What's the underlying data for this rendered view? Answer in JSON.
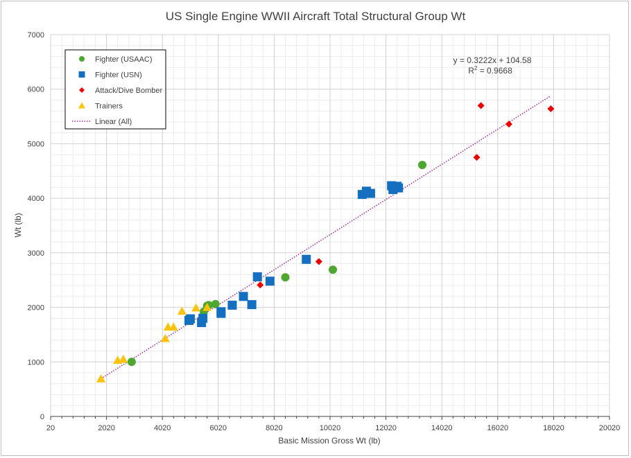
{
  "chart_data": {
    "type": "scatter",
    "title": "US Single Engine WWII Aircraft Total Structural Group Wt",
    "xlabel": "Basic Mission Gross Wt (lb)",
    "ylabel": "Wt (lb)",
    "xlim": [
      20,
      20020
    ],
    "ylim": [
      0,
      7000
    ],
    "x_ticks": [
      "20",
      "2020",
      "4020",
      "6020",
      "8020",
      "10020",
      "12020",
      "14020",
      "16020",
      "18020",
      "20020"
    ],
    "y_ticks": [
      "0",
      "1000",
      "2000",
      "3000",
      "4000",
      "5000",
      "6000",
      "7000"
    ],
    "grid": true,
    "legend_position": "top-left",
    "series": [
      {
        "name": "Fighter (USAAC)",
        "marker": "circle",
        "color": "#4ea72e",
        "points": [
          [
            2920,
            1000
          ],
          [
            5500,
            1920
          ],
          [
            5620,
            2030
          ],
          [
            5680,
            2040
          ],
          [
            5920,
            2060
          ],
          [
            8420,
            2550
          ],
          [
            10120,
            2690
          ],
          [
            13320,
            4610
          ]
        ]
      },
      {
        "name": "Fighter (USN)",
        "marker": "square",
        "color": "#156fc1",
        "points": [
          [
            4970,
            1760
          ],
          [
            5020,
            1790
          ],
          [
            5420,
            1720
          ],
          [
            5470,
            1800
          ],
          [
            6120,
            1890
          ],
          [
            6120,
            1920
          ],
          [
            6520,
            2040
          ],
          [
            6920,
            2200
          ],
          [
            7220,
            2050
          ],
          [
            7420,
            2560
          ],
          [
            7870,
            2480
          ],
          [
            9170,
            2880
          ],
          [
            11170,
            4070
          ],
          [
            11320,
            4130
          ],
          [
            11470,
            4090
          ],
          [
            12220,
            4230
          ],
          [
            12270,
            4160
          ],
          [
            12320,
            4210
          ],
          [
            12420,
            4220
          ],
          [
            12470,
            4190
          ]
        ]
      },
      {
        "name": "Attack/Dive Bomber",
        "marker": "diamond",
        "color": "#ee0000",
        "points": [
          [
            7520,
            2410
          ],
          [
            9620,
            2840
          ],
          [
            15270,
            4750
          ],
          [
            15420,
            5700
          ],
          [
            16420,
            5360
          ],
          [
            17920,
            5640
          ]
        ]
      },
      {
        "name": "Trainers",
        "marker": "triangle",
        "color": "#fbc30c",
        "points": [
          [
            1820,
            690
          ],
          [
            2420,
            1030
          ],
          [
            2620,
            1050
          ],
          [
            4120,
            1430
          ],
          [
            4220,
            1640
          ],
          [
            4420,
            1640
          ],
          [
            4720,
            1930
          ],
          [
            5220,
            1990
          ],
          [
            5620,
            2000
          ]
        ]
      }
    ],
    "trendline": {
      "name": "Linear (All)",
      "color": "#a02b93",
      "slope": 0.3222,
      "intercept": 104.58,
      "x_range": [
        1820,
        17920
      ],
      "equation": "y = 0.3222x + 104.58",
      "r2_label": "R",
      "r2_sup": "2",
      "r2_value": " = 0.9668"
    }
  }
}
